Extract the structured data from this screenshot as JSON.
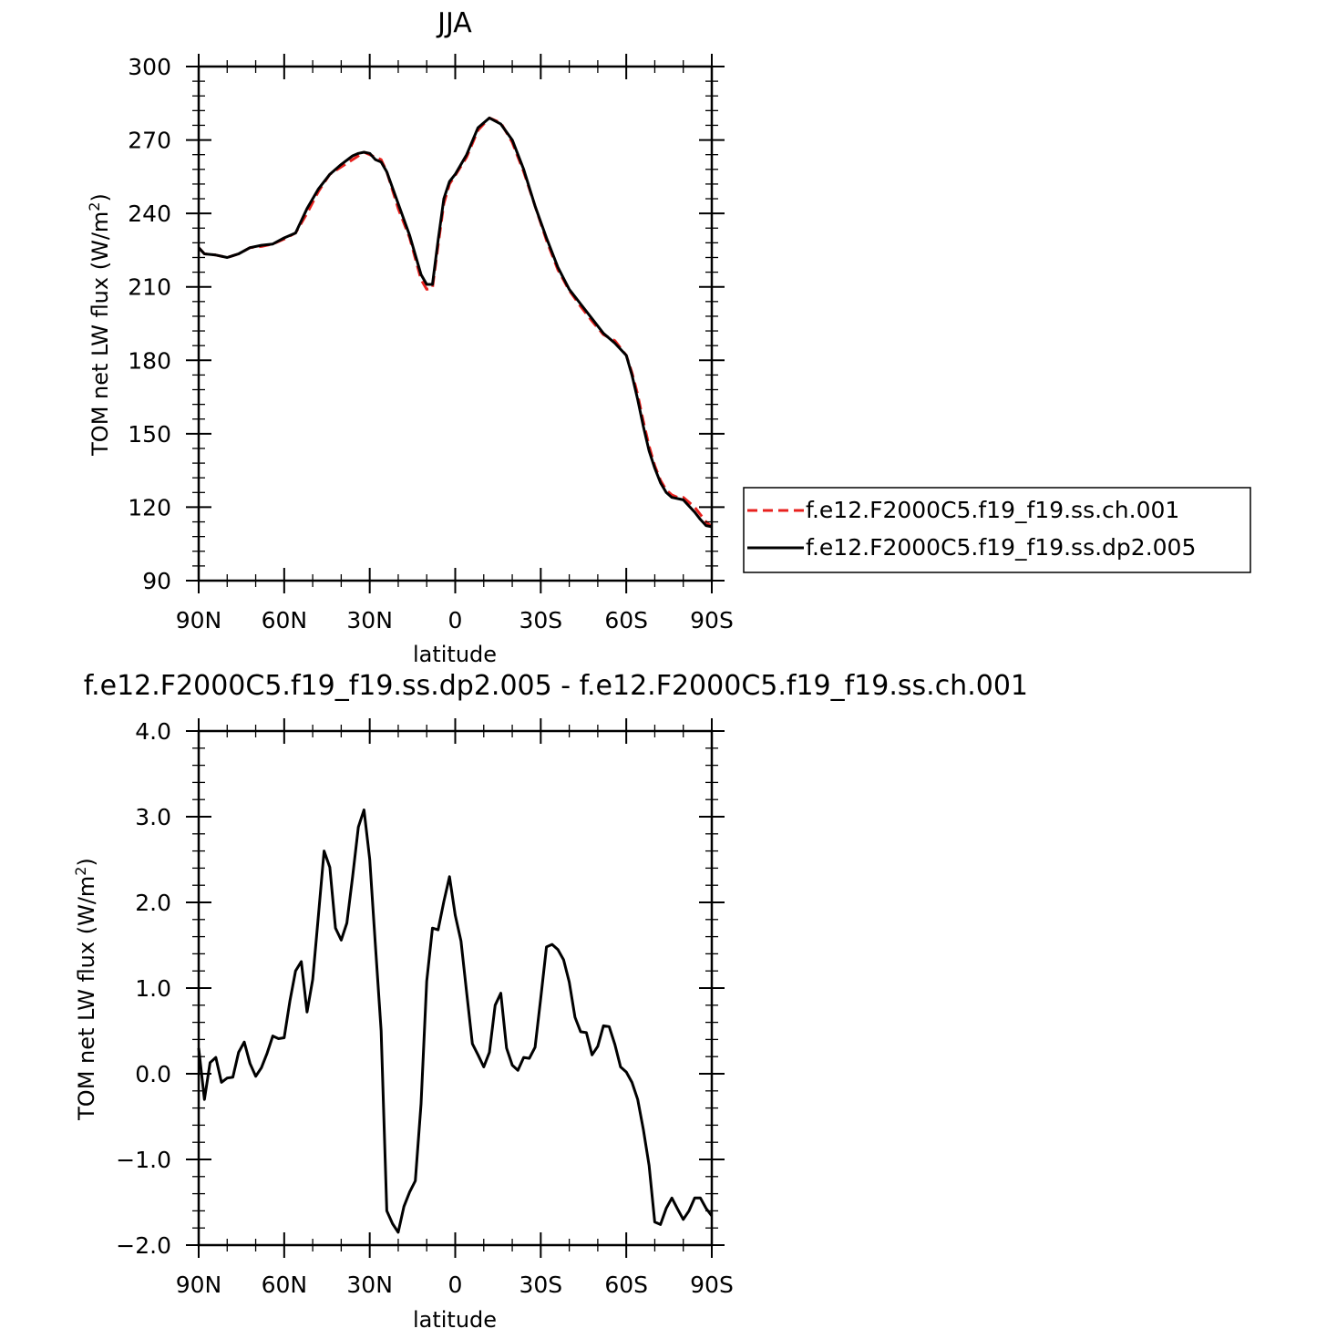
{
  "chart_data": [
    {
      "type": "line",
      "title": "JJA",
      "xlabel": "latitude",
      "ylabel": "TOM net LW flux (W/m",
      "ylabel_sup": "2",
      "ylabel_tail": ")",
      "xlim": [
        90,
        -90
      ],
      "ylim": [
        90,
        300
      ],
      "yticks": [
        90,
        120,
        150,
        180,
        210,
        240,
        270,
        300
      ],
      "ytick_labels": [
        "90",
        "120",
        "150",
        "180",
        "210",
        "240",
        "270",
        "300"
      ],
      "xticks": [
        90,
        60,
        30,
        0,
        -30,
        -60,
        -90
      ],
      "xtick_labels": [
        "90N",
        "60N",
        "30N",
        "0",
        "30S",
        "60S",
        "90S"
      ],
      "legend": "right",
      "series": [
        {
          "name": "f.e12.F2000C5.f19_f19.ss.ch.001",
          "color": "#e8211e",
          "dash": "dashed",
          "x": [
            90,
            88,
            84,
            80,
            76,
            72,
            68,
            64,
            60,
            56,
            52,
            48,
            44,
            40,
            36,
            32,
            30,
            28,
            26,
            24,
            20,
            16,
            12,
            10,
            8,
            6,
            4,
            2,
            0,
            -4,
            -8,
            -12,
            -16,
            -20,
            -24,
            -28,
            -32,
            -36,
            -40,
            -44,
            -48,
            -52,
            -56,
            -60,
            -62,
            -64,
            -66,
            -68,
            -70,
            -72,
            -74,
            -76,
            -78,
            -80,
            -84,
            -86,
            -88,
            -90
          ],
          "values": [
            226,
            223.5,
            223,
            222,
            223.5,
            226,
            226.5,
            227.5,
            229.5,
            232,
            240,
            249,
            256,
            259,
            262,
            265,
            264,
            263,
            262,
            257,
            242,
            230,
            213,
            209,
            209.5,
            227,
            244,
            252,
            255.5,
            263,
            274,
            279,
            277,
            269,
            257,
            243,
            229,
            217,
            208.5,
            202,
            196,
            190.5,
            188,
            182,
            175,
            166,
            155,
            145,
            137,
            131,
            127,
            125,
            124,
            124,
            120,
            117,
            114,
            112
          ]
        },
        {
          "name": "f.e12.F2000C5.f19_f19.ss.dp2.005",
          "color": "#000000",
          "dash": "solid",
          "x": [
            90,
            88,
            84,
            80,
            76,
            72,
            68,
            64,
            60,
            56,
            52,
            48,
            44,
            40,
            36,
            34,
            32,
            30,
            28,
            26,
            24,
            20,
            16,
            12,
            10,
            8,
            6,
            4,
            2,
            0,
            -4,
            -8,
            -12,
            -16,
            -20,
            -24,
            -28,
            -32,
            -36,
            -40,
            -44,
            -48,
            -52,
            -56,
            -60,
            -62,
            -64,
            -66,
            -68,
            -70,
            -72,
            -74,
            -76,
            -78,
            -80,
            -84,
            -86,
            -88,
            -90
          ],
          "values": [
            226,
            223.5,
            223,
            222,
            223.5,
            226,
            227,
            227.5,
            230,
            232,
            242,
            250,
            256,
            260,
            263.5,
            264.5,
            265,
            264.5,
            262,
            261,
            257,
            244,
            231,
            215,
            211,
            211,
            229,
            246,
            253,
            256,
            264,
            275,
            279,
            276.5,
            270,
            258,
            243,
            230,
            218,
            209,
            203,
            197,
            191,
            187,
            182,
            174,
            164,
            153,
            143,
            136,
            130,
            126,
            124,
            123.5,
            123,
            118,
            115,
            112.5,
            112
          ]
        }
      ]
    },
    {
      "type": "line",
      "title": "f.e12.F2000C5.f19_f19.ss.dp2.005 - f.e12.F2000C5.f19_f19.ss.ch.001",
      "xlabel": "latitude",
      "ylabel": "TOM net LW flux (W/m",
      "ylabel_sup": "2",
      "ylabel_tail": ")",
      "xlim": [
        90,
        -90
      ],
      "ylim": [
        -2.0,
        4.0
      ],
      "yticks": [
        -2.0,
        -1.0,
        0.0,
        1.0,
        2.0,
        3.0,
        4.0
      ],
      "ytick_labels": [
        "−2.0",
        "−1.0",
        "0.0",
        "1.0",
        "2.0",
        "3.0",
        "4.0"
      ],
      "xticks": [
        90,
        60,
        30,
        0,
        -30,
        -60,
        -90
      ],
      "xtick_labels": [
        "90N",
        "60N",
        "30N",
        "0",
        "30S",
        "60S",
        "90S"
      ],
      "series": [
        {
          "color": "#000000",
          "x": [
            90,
            88,
            86,
            84,
            82,
            80,
            78,
            76,
            74,
            72,
            70,
            68,
            66,
            64,
            62,
            60,
            58,
            56,
            54,
            52,
            50,
            48,
            46,
            44,
            42,
            40,
            38,
            36,
            34,
            32,
            30,
            28,
            26,
            24,
            22,
            20,
            18,
            16,
            14,
            12,
            10,
            8,
            6,
            4,
            2,
            0,
            -2,
            -4,
            -6,
            -8,
            -10,
            -12,
            -14,
            -16,
            -18,
            -20,
            -22,
            -24,
            -26,
            -28,
            -30,
            -32,
            -34,
            -36,
            -38,
            -40,
            -42,
            -44,
            -46,
            -48,
            -50,
            -52,
            -54,
            -56,
            -58,
            -60,
            -62,
            -64,
            -66,
            -68,
            -70,
            -72,
            -74,
            -76,
            -78,
            -80,
            -82,
            -84,
            -86,
            -88,
            -90
          ],
          "values": [
            0.3,
            -0.3,
            0.13,
            0.19,
            -0.1,
            -0.05,
            -0.04,
            0.25,
            0.37,
            0.12,
            -0.03,
            0.07,
            0.24,
            0.44,
            0.41,
            0.42,
            0.85,
            1.2,
            1.31,
            0.72,
            1.1,
            1.85,
            2.6,
            2.41,
            1.7,
            1.56,
            1.76,
            2.3,
            2.88,
            3.08,
            2.5,
            1.5,
            0.5,
            -1.6,
            -1.75,
            -1.85,
            -1.55,
            -1.38,
            -1.25,
            -0.35,
            1.08,
            1.7,
            1.68,
            2.01,
            2.3,
            1.85,
            1.55,
            0.95,
            0.35,
            0.22,
            0.08,
            0.25,
            0.8,
            0.94,
            0.3,
            0.1,
            0.04,
            0.19,
            0.18,
            0.31,
            0.88,
            1.48,
            1.51,
            1.45,
            1.33,
            1.07,
            0.66,
            0.49,
            0.48,
            0.22,
            0.32,
            0.56,
            0.55,
            0.34,
            0.08,
            0.02,
            -0.1,
            -0.3,
            -0.65,
            -1.07,
            -1.73,
            -1.76,
            -1.57,
            -1.45,
            -1.58,
            -1.7,
            -1.6,
            -1.45,
            -1.45,
            -1.57,
            -1.66
          ]
        }
      ]
    }
  ]
}
